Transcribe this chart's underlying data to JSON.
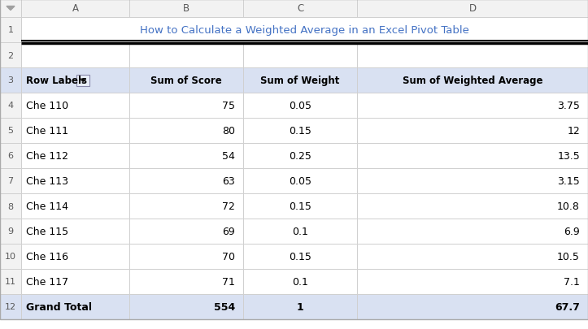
{
  "title": "How to Calculate a Weighted Average in an Excel Pivot Table",
  "title_color": "#4472C4",
  "col_headers": [
    "Row Labels",
    "Sum of Score",
    "Sum of Weight",
    "Sum of Weighted Average"
  ],
  "row_labels": [
    "Che 110",
    "Che 111",
    "Che 112",
    "Che 113",
    "Che 114",
    "Che 115",
    "Che 116",
    "Che 117"
  ],
  "sum_of_score": [
    "75",
    "80",
    "54",
    "63",
    "72",
    "69",
    "70",
    "71"
  ],
  "sum_of_weight": [
    "0.05",
    "0.15",
    "0.25",
    "0.05",
    "0.15",
    "0.1",
    "0.15",
    "0.1"
  ],
  "sum_of_weighted_avg": [
    "3.75",
    "12",
    "13.5",
    "3.15",
    "10.8",
    "6.9",
    "10.5",
    "7.1"
  ],
  "grand_total_label": "Grand Total",
  "grand_total_score": "554",
  "grand_total_weight": "1",
  "grand_total_avg": "67.7",
  "col_letters": [
    "A",
    "B",
    "C",
    "D"
  ],
  "header_bg": "#D9E1F2",
  "grand_total_bg": "#D9E1F2",
  "cell_bg": "#FFFFFF",
  "grid_color": "#D0D0D0",
  "fig_bg": "#FFFFFF",
  "rn_col_bg": "#F2F2F2",
  "col_letter_bg": "#F2F2F2",
  "rn_text_color": "#595959",
  "col_letter_color": "#595959",
  "body_text_color": "#000000",
  "title_fontsize": 9.5,
  "header_fontsize": 8.5,
  "body_fontsize": 9.0,
  "rn_fontsize": 8.0
}
